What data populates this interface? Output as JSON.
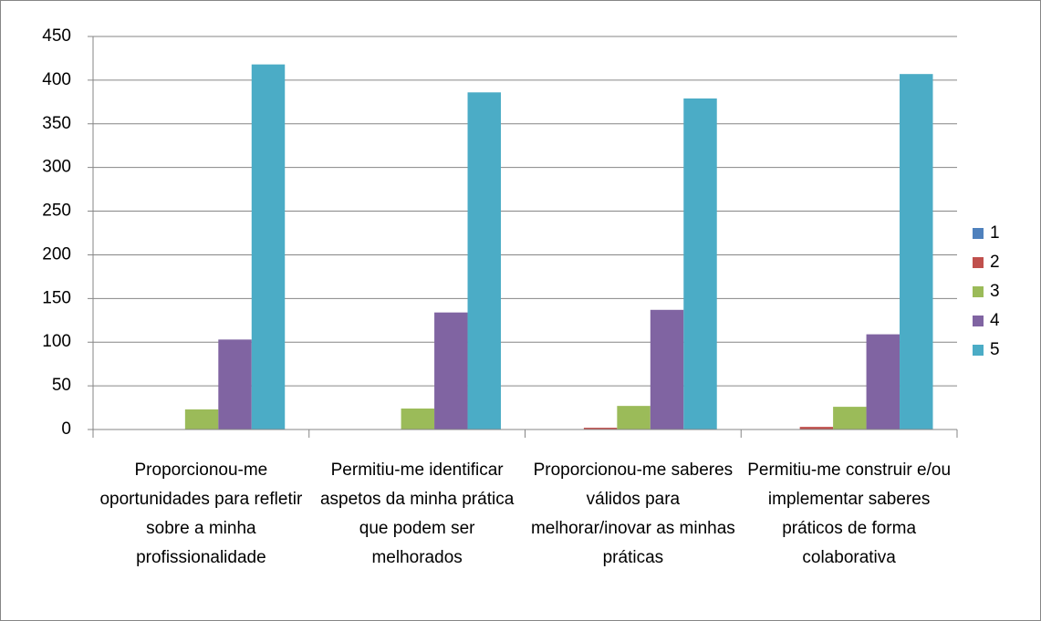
{
  "chart_data": {
    "type": "bar",
    "categories": [
      "Proporcionou-me oportunidades para refletir sobre a minha profissionalidade",
      "Permitiu-me identificar aspetos da minha prática que podem ser melhorados",
      "Proporcionou-me saberes válidos para melhorar/inovar as minhas práticas",
      "Permitiu-me construir e/ou implementar saberes práticos de forma colaborativa"
    ],
    "series": [
      {
        "name": "1",
        "color": "#4f81bd",
        "values": [
          0,
          0,
          0,
          0
        ]
      },
      {
        "name": "2",
        "color": "#c0504d",
        "values": [
          0,
          0,
          2,
          3
        ]
      },
      {
        "name": "3",
        "color": "#9bbb59",
        "values": [
          23,
          24,
          27,
          26
        ]
      },
      {
        "name": "4",
        "color": "#8064a2",
        "values": [
          103,
          134,
          137,
          109
        ]
      },
      {
        "name": "5",
        "color": "#4bacc6",
        "values": [
          418,
          386,
          379,
          407
        ]
      }
    ],
    "ylim": [
      0,
      450
    ],
    "yticks": [
      0,
      50,
      100,
      150,
      200,
      250,
      300,
      350,
      400,
      450
    ],
    "grid": true,
    "legend": "right"
  }
}
